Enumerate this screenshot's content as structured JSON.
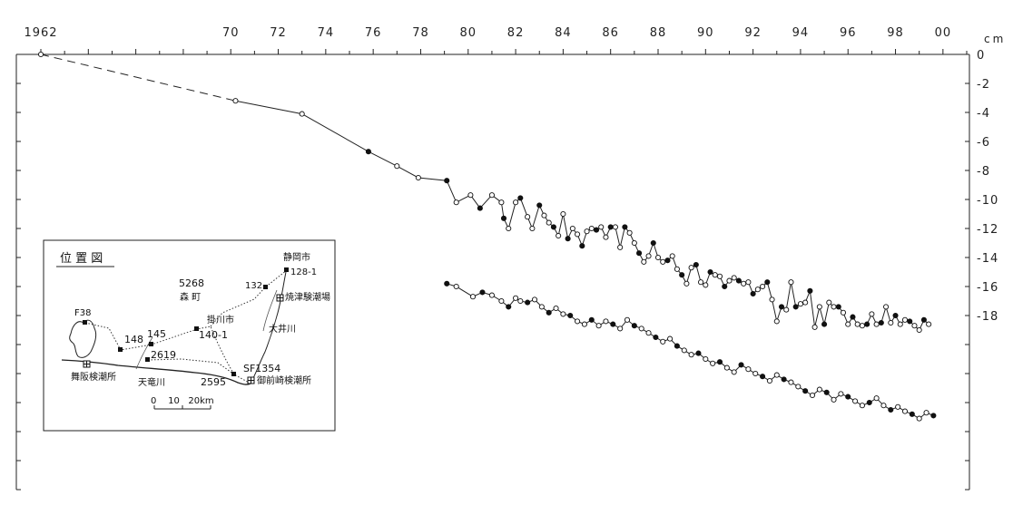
{
  "chart_data": {
    "type": "line",
    "x_tick_labels": [
      "1962",
      "70",
      "72",
      "74",
      "76",
      "78",
      "80",
      "82",
      "84",
      "86",
      "88",
      "90",
      "92",
      "94",
      "96",
      "98",
      "00"
    ],
    "x_tick_years": [
      1962,
      1970,
      1972,
      1974,
      1976,
      1978,
      1980,
      1982,
      1984,
      1986,
      1988,
      1990,
      1992,
      1994,
      1996,
      1998,
      2000
    ],
    "xlim": [
      1962,
      2001
    ],
    "y_unit": "cm",
    "y_tick_labels": [
      "0",
      "-2",
      "-4",
      "-6",
      "-8",
      "-10",
      "-12",
      "-14",
      "-16",
      "-18"
    ],
    "y_tick_values": [
      0,
      -2,
      -4,
      -6,
      -8,
      -10,
      -12,
      -14,
      -16,
      -18
    ],
    "ylim": [
      -30,
      0
    ],
    "grid": false,
    "series": [
      {
        "x": [
          1962.0,
          1970.2,
          1973.0,
          1975.8,
          1977.0,
          1977.9,
          1979.1,
          1979.5,
          1980.1,
          1980.5,
          1981.0,
          1981.4,
          1981.5,
          1981.7,
          1982.0,
          1982.2,
          1982.5,
          1982.7,
          1983.0,
          1983.2,
          1983.4,
          1983.6,
          1983.8,
          1984.0,
          1984.2,
          1984.4,
          1984.6,
          1984.8,
          1985.0,
          1985.2,
          1985.4,
          1985.6,
          1985.8,
          1986.0,
          1986.2,
          1986.4,
          1986.6,
          1986.8,
          1987.0,
          1987.2,
          1987.4,
          1987.6,
          1987.8,
          1988.0,
          1988.2,
          1988.4,
          1988.6,
          1988.8,
          1989.0,
          1989.2,
          1989.4,
          1989.6,
          1989.8,
          1990.0,
          1990.2,
          1990.4,
          1990.6,
          1990.8,
          1991.0,
          1991.2,
          1991.4,
          1991.6,
          1991.8,
          1992.0,
          1992.2,
          1992.4,
          1992.6,
          1992.8,
          1993.0,
          1993.2,
          1993.4,
          1993.6,
          1993.8,
          1994.0,
          1994.2,
          1994.4,
          1994.6,
          1994.8,
          1995.0,
          1995.2,
          1995.4,
          1995.6,
          1995.8,
          1996.0,
          1996.2,
          1996.4,
          1996.6,
          1996.8,
          1997.0,
          1997.2,
          1997.4,
          1997.6,
          1997.8,
          1998.0,
          1998.2,
          1998.4,
          1998.6,
          1998.8,
          1999.0,
          1999.2,
          1999.4
        ],
        "values": [
          0,
          -3.2,
          -4.1,
          -6.7,
          -7.7,
          -8.5,
          -8.7,
          -10.2,
          -9.7,
          -10.6,
          -9.7,
          -10.2,
          -11.3,
          -12.0,
          -10.2,
          -9.9,
          -11.2,
          -12.0,
          -10.4,
          -11.1,
          -11.6,
          -11.9,
          -12.5,
          -11.0,
          -12.7,
          -12.0,
          -12.4,
          -13.2,
          -12.2,
          -12.0,
          -12.1,
          -11.9,
          -12.6,
          -11.9,
          -11.9,
          -13.3,
          -11.9,
          -12.3,
          -13.0,
          -13.7,
          -14.3,
          -13.9,
          -13.0,
          -14.0,
          -14.3,
          -14.2,
          -13.9,
          -14.8,
          -15.2,
          -15.8,
          -14.7,
          -14.5,
          -15.7,
          -15.9,
          -15.0,
          -15.2,
          -15.3,
          -16.0,
          -15.6,
          -15.4,
          -15.6,
          -15.8,
          -15.7,
          -16.5,
          -16.2,
          -16.0,
          -15.7,
          -16.9,
          -18.4,
          -17.4,
          -17.6,
          -15.7,
          -17.4,
          -17.2,
          -17.1,
          -16.3,
          -18.8,
          -17.4,
          -18.6,
          -17.1,
          -17.4,
          -17.4,
          -17.8,
          -18.6,
          -18.1,
          -18.6,
          -18.7,
          -18.6,
          -17.9,
          -18.6,
          -18.5,
          -17.4,
          -18.5,
          -18.0,
          -18.6,
          -18.3,
          -18.4,
          -18.7,
          -19.0,
          -18.3,
          -18.6
        ]
      },
      {
        "x": [
          1979.1,
          1979.5,
          1980.2,
          1980.6,
          1981.0,
          1981.4,
          1981.7,
          1982.0,
          1982.2,
          1982.5,
          1982.8,
          1983.1,
          1983.4,
          1983.7,
          1984.0,
          1984.3,
          1984.6,
          1984.9,
          1985.2,
          1985.5,
          1985.8,
          1986.1,
          1986.4,
          1986.7,
          1987.0,
          1987.3,
          1987.6,
          1987.9,
          1988.2,
          1988.5,
          1988.8,
          1989.1,
          1989.4,
          1989.7,
          1990.0,
          1990.3,
          1990.6,
          1990.9,
          1991.2,
          1991.5,
          1991.8,
          1992.1,
          1992.4,
          1992.7,
          1993.0,
          1993.3,
          1993.6,
          1993.9,
          1994.2,
          1994.5,
          1994.8,
          1995.1,
          1995.4,
          1995.7,
          1996.0,
          1996.3,
          1996.6,
          1996.9,
          1997.2,
          1997.5,
          1997.8,
          1998.1,
          1998.4,
          1998.7,
          1999.0,
          1999.3,
          1999.6
        ],
        "values": [
          -15.8,
          -16.0,
          -16.7,
          -16.4,
          -16.6,
          -17.0,
          -17.4,
          -16.8,
          -17.0,
          -17.1,
          -16.9,
          -17.4,
          -17.8,
          -17.5,
          -17.9,
          -18.0,
          -18.4,
          -18.6,
          -18.3,
          -18.7,
          -18.4,
          -18.6,
          -18.9,
          -18.3,
          -18.7,
          -18.9,
          -19.2,
          -19.5,
          -19.8,
          -19.6,
          -20.1,
          -20.4,
          -20.7,
          -20.6,
          -21.0,
          -21.3,
          -21.2,
          -21.6,
          -21.9,
          -21.4,
          -21.7,
          -22.0,
          -22.2,
          -22.5,
          -22.1,
          -22.4,
          -22.6,
          -22.9,
          -23.2,
          -23.5,
          -23.1,
          -23.3,
          -23.8,
          -23.4,
          -23.6,
          -23.9,
          -24.2,
          -24.0,
          -23.7,
          -24.2,
          -24.5,
          -24.3,
          -24.6,
          -24.8,
          -25.1,
          -24.7,
          -24.9
        ]
      }
    ]
  },
  "inset_map": {
    "title": "位 置 図",
    "labels": {
      "shizuoka": "静岡市",
      "bm_128": "128-1",
      "bm_132": "132",
      "bm_5268": "5268",
      "mori": "森 町",
      "yaizu": "焼津験潮場",
      "f38": "F38",
      "bm_148": "148",
      "bm_145": "145",
      "kakegawa": "掛川市",
      "bm_140": "140-1",
      "oigawa": "大井川",
      "bm_2619": "2619",
      "sf1354": "SF1354",
      "maisaka": "舞阪検潮所",
      "tenryu": "天竜川",
      "bm_2595": "2595",
      "omaezaki": "御前崎検潮所",
      "scale": "0    10   20km"
    }
  }
}
